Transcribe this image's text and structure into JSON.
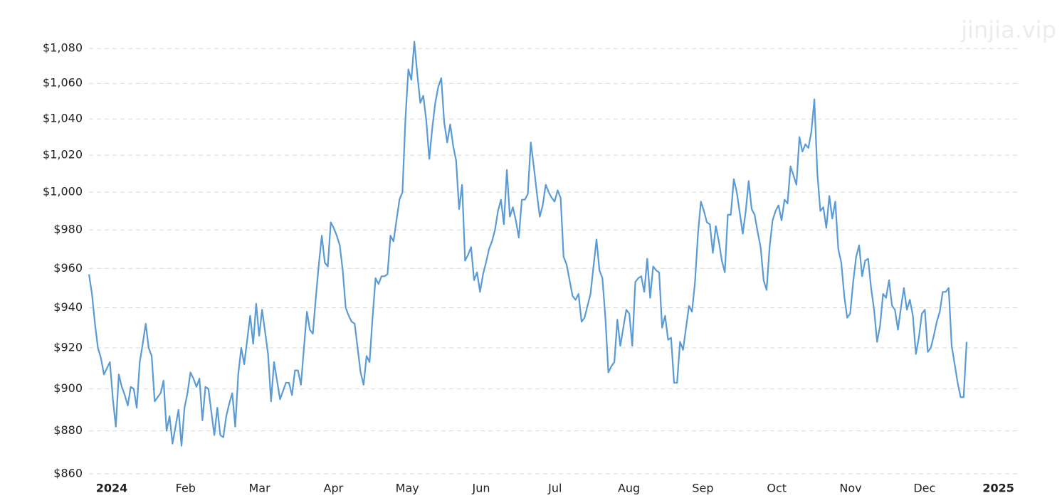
{
  "watermark": "jinjia.vip",
  "chart_data": {
    "type": "line",
    "color": "#5b9bd5",
    "log_scale": true,
    "grid": true,
    "ylim": [
      860,
      1090
    ],
    "yticks": [
      {
        "value": 860,
        "label": "$860"
      },
      {
        "value": 880,
        "label": "$880"
      },
      {
        "value": 900,
        "label": "$900"
      },
      {
        "value": 920,
        "label": "$920"
      },
      {
        "value": 940,
        "label": "$940"
      },
      {
        "value": 960,
        "label": "$960"
      },
      {
        "value": 980,
        "label": "$980"
      },
      {
        "value": 1000,
        "label": "$1,000"
      },
      {
        "value": 1020,
        "label": "$1,020"
      },
      {
        "value": 1040,
        "label": "$1,040"
      },
      {
        "value": 1060,
        "label": "$1,060"
      },
      {
        "value": 1080,
        "label": "$1,080"
      }
    ],
    "xtick_labels": [
      "2024",
      "Feb",
      "Mar",
      "Apr",
      "May",
      "Jun",
      "Jul",
      "Aug",
      "Sep",
      "Oct",
      "Nov",
      "Dec",
      "2025"
    ],
    "values": [
      957,
      947,
      932,
      920,
      915,
      907,
      910,
      913,
      895,
      882,
      907,
      901,
      897,
      892,
      901,
      900,
      891,
      913,
      922,
      932,
      920,
      916,
      894,
      896,
      898,
      904,
      880,
      887,
      874,
      882,
      890,
      873,
      891,
      898,
      908,
      905,
      901,
      905,
      885,
      901,
      900,
      889,
      878,
      891,
      878,
      877,
      887,
      893,
      898,
      882,
      907,
      920,
      912,
      924,
      936,
      922,
      942,
      926,
      939,
      928,
      917,
      894,
      913,
      904,
      895,
      899,
      903,
      903,
      897,
      909,
      909,
      902,
      920,
      938,
      929,
      927,
      945,
      962,
      977,
      963,
      961,
      984,
      981,
      977,
      972,
      959,
      940,
      936,
      933,
      932,
      920,
      908,
      902,
      916,
      913,
      935,
      955,
      952,
      956,
      956,
      957,
      977,
      974,
      985,
      996,
      1000,
      1040,
      1068,
      1062,
      1084,
      1065,
      1049,
      1053,
      1039,
      1018,
      1035,
      1049,
      1058,
      1063,
      1038,
      1027,
      1037,
      1025,
      1017,
      991,
      1004,
      964,
      967,
      971,
      954,
      958,
      948,
      957,
      963,
      970,
      974,
      980,
      990,
      996,
      983,
      1012,
      987,
      992,
      985,
      976,
      996,
      996,
      999,
      1027,
      1014,
      1000,
      987,
      993,
      1004,
      1000,
      997,
      995,
      1001,
      997,
      966,
      962,
      954,
      946,
      944,
      947,
      933,
      935,
      941,
      947,
      961,
      975,
      959,
      955,
      935,
      908,
      911,
      913,
      934,
      921,
      930,
      939,
      937,
      921,
      953,
      955,
      956,
      948,
      965,
      945,
      961,
      959,
      958,
      930,
      936,
      924,
      925,
      903,
      903,
      923,
      919,
      930,
      941,
      938,
      953,
      978,
      995,
      990,
      984,
      983,
      968,
      982,
      974,
      964,
      958,
      988,
      988,
      1007,
      1000,
      989,
      978,
      990,
      1006,
      991,
      988,
      979,
      971,
      954,
      949,
      971,
      985,
      990,
      993,
      985,
      996,
      994,
      1014,
      1009,
      1004,
      1030,
      1022,
      1026,
      1024,
      1033,
      1051,
      1010,
      990,
      992,
      981,
      998,
      986,
      995,
      970,
      963,
      946,
      935,
      937,
      953,
      966,
      972,
      956,
      964,
      965,
      950,
      939,
      923,
      931,
      947,
      945,
      954,
      941,
      939,
      929,
      940,
      950,
      939,
      944,
      936,
      917,
      925,
      937,
      939,
      918,
      920,
      926,
      933,
      938,
      948,
      948,
      950,
      921,
      912,
      903,
      896,
      896,
      923
    ]
  }
}
